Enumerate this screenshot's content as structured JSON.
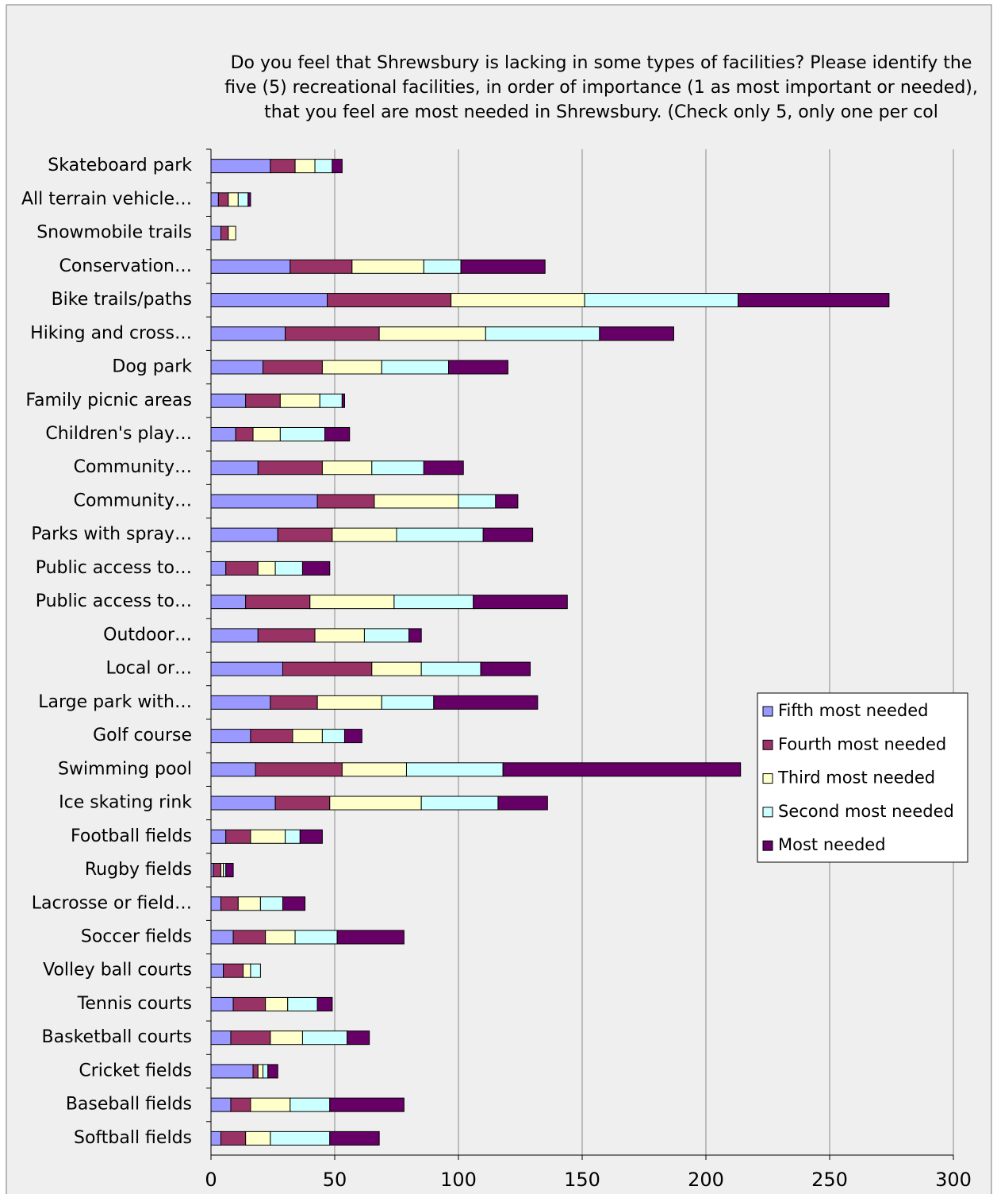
{
  "chart_data": {
    "type": "stacked_bar_horizontal",
    "title": "Do you feel that Shrewsbury is lacking in some types of facilities?  Please identify the five (5) recreational facilities, in order of importance (1 as most important or needed), that you feel are most needed in Shrewsbury. (Check only 5, only one per col",
    "categories": [
      "Skateboard park",
      "All terrain vehicle…",
      "Snowmobile trails",
      "Conservation…",
      "Bike trails/paths",
      "Hiking and cross…",
      "Dog park",
      "Family picnic areas",
      "Children's play…",
      "Community…",
      "Community…",
      "Parks with spray…",
      "Public access to…",
      "Public access to…",
      "Outdoor…",
      "Local or…",
      "Large park with…",
      "Golf course",
      "Swimming pool",
      "Ice skating rink",
      "Football fields",
      "Rugby fields",
      "Lacrosse or field…",
      "Soccer fields",
      "Volley ball courts",
      "Tennis courts",
      "Basketball courts",
      "Cricket fields",
      "Baseball fields",
      "Softball fields"
    ],
    "series": [
      {
        "name": "Fifth most needed",
        "color": "#9999ff",
        "values": [
          24,
          3,
          4,
          32,
          47,
          30,
          21,
          14,
          10,
          19,
          43,
          27,
          6,
          14,
          19,
          29,
          24,
          16,
          18,
          26,
          6,
          1,
          4,
          9,
          5,
          9,
          8,
          17,
          8,
          4
        ]
      },
      {
        "name": "Fourth most needed",
        "color": "#993366",
        "values": [
          10,
          4,
          3,
          25,
          50,
          38,
          24,
          14,
          7,
          26,
          23,
          22,
          13,
          26,
          23,
          36,
          19,
          17,
          35,
          22,
          10,
          3,
          7,
          13,
          8,
          13,
          16,
          2,
          8,
          10
        ]
      },
      {
        "name": "Third most needed",
        "color": "#ffffcc",
        "values": [
          8,
          4,
          3,
          29,
          54,
          43,
          24,
          16,
          11,
          20,
          34,
          26,
          7,
          34,
          20,
          20,
          26,
          12,
          26,
          37,
          14,
          1,
          9,
          12,
          3,
          9,
          13,
          2,
          16,
          10
        ]
      },
      {
        "name": "Second most needed",
        "color": "#ccffff",
        "values": [
          7,
          4,
          0,
          15,
          62,
          46,
          27,
          9,
          18,
          21,
          15,
          35,
          11,
          32,
          18,
          24,
          21,
          9,
          39,
          31,
          6,
          1,
          9,
          17,
          4,
          12,
          18,
          2,
          16,
          24
        ]
      },
      {
        "name": "Most needed",
        "color": "#660066",
        "values": [
          4,
          1,
          0,
          34,
          61,
          30,
          24,
          1,
          10,
          16,
          9,
          20,
          11,
          38,
          5,
          20,
          42,
          7,
          96,
          20,
          9,
          3,
          9,
          27,
          0,
          6,
          9,
          4,
          30,
          20
        ]
      }
    ],
    "xlim": [
      0,
      300
    ],
    "xticks": [
      0,
      50,
      100,
      150,
      200,
      250,
      300
    ],
    "grid": true,
    "legend": "right"
  }
}
